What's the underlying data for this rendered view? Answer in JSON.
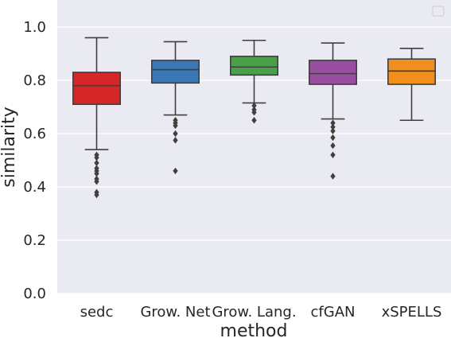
{
  "chart_data": {
    "type": "box",
    "title": "",
    "xlabel": "method",
    "ylabel": "similarity",
    "ylim": [
      0.0,
      1.09
    ],
    "yticks": [
      0.0,
      0.2,
      0.4,
      0.6,
      0.8,
      1.0
    ],
    "ytick_labels": [
      "0.0",
      "0.2",
      "0.4",
      "0.6",
      "0.8",
      "1.0"
    ],
    "grid": true,
    "legend": "top-right (empty)",
    "categories": [
      "sedc",
      "Grow. Net",
      "Grow. Lang.",
      "cfGAN",
      "xSPELLS"
    ],
    "series": [
      {
        "name": "sedc",
        "color": "#d62728",
        "q1": 0.71,
        "median": 0.78,
        "q3": 0.83,
        "whisker_low": 0.54,
        "whisker_high": 0.96,
        "outliers": [
          0.52,
          0.51,
          0.49,
          0.47,
          0.46,
          0.45,
          0.43,
          0.42,
          0.38,
          0.37
        ]
      },
      {
        "name": "Grow. Net",
        "color": "#3a78b5",
        "q1": 0.79,
        "median": 0.84,
        "q3": 0.875,
        "whisker_low": 0.67,
        "whisker_high": 0.945,
        "outliers": [
          0.65,
          0.64,
          0.63,
          0.6,
          0.575,
          0.46
        ]
      },
      {
        "name": "Grow. Lang.",
        "color": "#4aa049",
        "q1": 0.82,
        "median": 0.85,
        "q3": 0.89,
        "whisker_low": 0.715,
        "whisker_high": 0.95,
        "outliers": [
          0.705,
          0.69,
          0.68,
          0.65
        ]
      },
      {
        "name": "cfGAN",
        "color": "#9a4ea1",
        "q1": 0.785,
        "median": 0.825,
        "q3": 0.875,
        "whisker_low": 0.655,
        "whisker_high": 0.94,
        "outliers": [
          0.64,
          0.625,
          0.61,
          0.585,
          0.555,
          0.52,
          0.44
        ]
      },
      {
        "name": "xSPELLS",
        "color": "#f28e1c",
        "q1": 0.785,
        "median": 0.835,
        "q3": 0.88,
        "whisker_low": 0.65,
        "whisker_high": 0.92,
        "outliers": []
      }
    ]
  }
}
